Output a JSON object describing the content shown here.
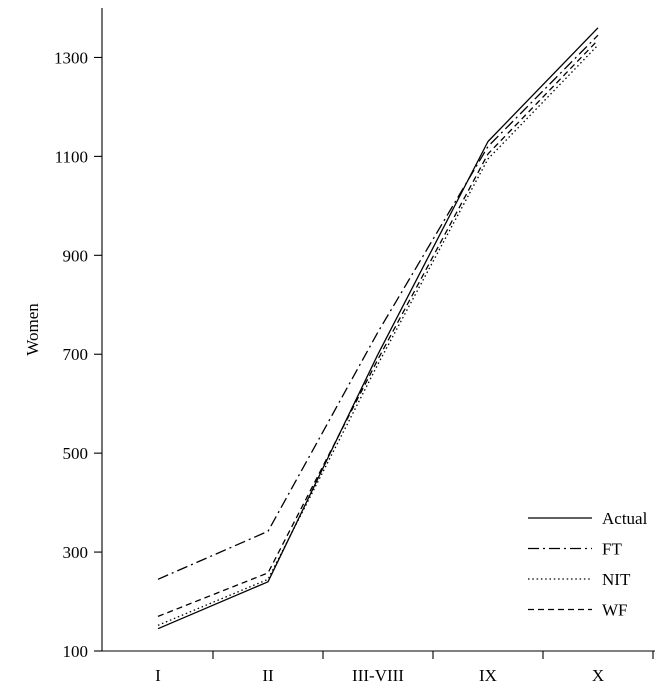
{
  "chart_data": {
    "type": "line",
    "ylabel": "Women",
    "xlabel": "",
    "categories": [
      "I",
      "II",
      "III-VIII",
      "IX",
      "X"
    ],
    "ylim": [
      100,
      1400
    ],
    "yticks": [
      100,
      300,
      500,
      700,
      900,
      1100,
      1300
    ],
    "grid": false,
    "legend_position": "bottom-right",
    "series": [
      {
        "name": "Actual",
        "dash": "solid",
        "values": [
          145,
          240,
          700,
          1130,
          1360
        ]
      },
      {
        "name": "FT",
        "dash": "dashdot",
        "values": [
          245,
          342,
          745,
          1120,
          1345
        ]
      },
      {
        "name": "NIT",
        "dash": "dotted",
        "values": [
          152,
          245,
          680,
          1095,
          1325
        ]
      },
      {
        "name": "WF",
        "dash": "dashed",
        "values": [
          170,
          258,
          690,
          1105,
          1335
        ]
      }
    ]
  }
}
